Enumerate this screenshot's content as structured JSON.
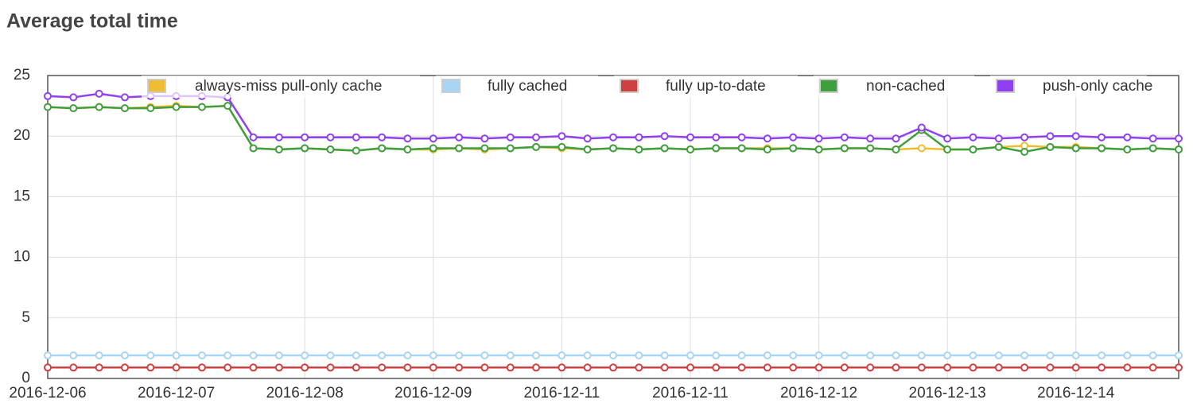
{
  "chart_data": {
    "type": "line",
    "title": "Average total time",
    "categories": [
      "2016-12-06",
      null,
      null,
      null,
      null,
      "2016-12-07",
      null,
      null,
      null,
      null,
      "2016-12-08",
      null,
      null,
      null,
      null,
      "2016-12-09",
      null,
      null,
      null,
      null,
      "2016-12-11",
      null,
      null,
      null,
      null,
      "2016-12-11",
      null,
      null,
      null,
      null,
      "2016-12-12",
      null,
      null,
      null,
      null,
      "2016-12-13",
      null,
      null,
      null,
      null,
      "2016-12-14",
      null,
      null,
      null,
      null
    ],
    "series": [
      {
        "name": "always-miss pull-only cache",
        "color": "#f0bd30",
        "values": [
          22.4,
          22.3,
          22.4,
          22.3,
          22.4,
          22.5,
          22.4,
          22.5,
          19.0,
          18.9,
          19.0,
          18.9,
          18.8,
          19.0,
          18.9,
          18.9,
          19.0,
          18.9,
          19.0,
          19.1,
          19.0,
          18.9,
          19.0,
          18.9,
          19.0,
          18.9,
          19.0,
          19.0,
          19.0,
          19.0,
          18.9,
          19.0,
          19.0,
          18.9,
          19.0,
          18.9,
          18.9,
          19.1,
          19.2,
          19.1,
          19.1,
          19.0,
          18.9,
          19.0,
          18.9
        ]
      },
      {
        "name": "fully cached",
        "color": "#a8d4f5",
        "values": [
          1.9,
          1.9,
          1.9,
          1.9,
          1.9,
          1.9,
          1.9,
          1.9,
          1.9,
          1.9,
          1.9,
          1.9,
          1.9,
          1.9,
          1.9,
          1.9,
          1.9,
          1.9,
          1.9,
          1.9,
          1.9,
          1.9,
          1.9,
          1.9,
          1.9,
          1.9,
          1.9,
          1.9,
          1.9,
          1.9,
          1.9,
          1.9,
          1.9,
          1.9,
          1.9,
          1.9,
          1.9,
          1.9,
          1.9,
          1.9,
          1.9,
          1.9,
          1.9,
          1.9,
          1.9
        ]
      },
      {
        "name": "fully up-to-date",
        "color": "#d04040",
        "values": [
          0.9,
          0.9,
          0.9,
          0.9,
          0.9,
          0.9,
          0.9,
          0.9,
          0.9,
          0.9,
          0.9,
          0.9,
          0.9,
          0.9,
          0.9,
          0.9,
          0.9,
          0.9,
          0.9,
          0.9,
          0.9,
          0.9,
          0.9,
          0.9,
          0.9,
          0.9,
          0.9,
          0.9,
          0.9,
          0.9,
          0.9,
          0.9,
          0.9,
          0.9,
          0.9,
          0.9,
          0.9,
          0.9,
          0.9,
          0.9,
          0.9,
          0.9,
          0.9,
          0.9,
          0.9
        ]
      },
      {
        "name": "non-cached",
        "color": "#3f9f3f",
        "values": [
          22.4,
          22.3,
          22.4,
          22.3,
          22.3,
          22.4,
          22.4,
          22.5,
          19.0,
          18.9,
          19.0,
          18.9,
          18.8,
          19.0,
          18.9,
          19.0,
          19.0,
          19.0,
          19.0,
          19.1,
          19.1,
          18.9,
          19.0,
          18.9,
          19.0,
          18.9,
          19.0,
          19.0,
          18.9,
          19.0,
          18.9,
          19.0,
          19.0,
          18.9,
          20.5,
          18.9,
          18.9,
          19.1,
          18.7,
          19.1,
          19.0,
          19.0,
          18.9,
          19.0,
          18.9
        ]
      },
      {
        "name": "push-only cache",
        "color": "#9040f0",
        "values": [
          23.3,
          23.2,
          23.5,
          23.2,
          23.3,
          23.3,
          23.3,
          23.2,
          19.9,
          19.9,
          19.9,
          19.9,
          19.9,
          19.9,
          19.8,
          19.8,
          19.9,
          19.8,
          19.9,
          19.9,
          20.0,
          19.8,
          19.9,
          19.9,
          20.0,
          19.9,
          19.9,
          19.9,
          19.8,
          19.9,
          19.8,
          19.9,
          19.8,
          19.8,
          20.7,
          19.8,
          19.9,
          19.8,
          19.9,
          20.0,
          20.0,
          19.9,
          19.9,
          19.8,
          19.8
        ]
      }
    ],
    "ylim": [
      0,
      25
    ],
    "yticks": [
      0,
      5,
      10,
      15,
      20,
      25
    ],
    "grid": true,
    "legend": "top"
  }
}
